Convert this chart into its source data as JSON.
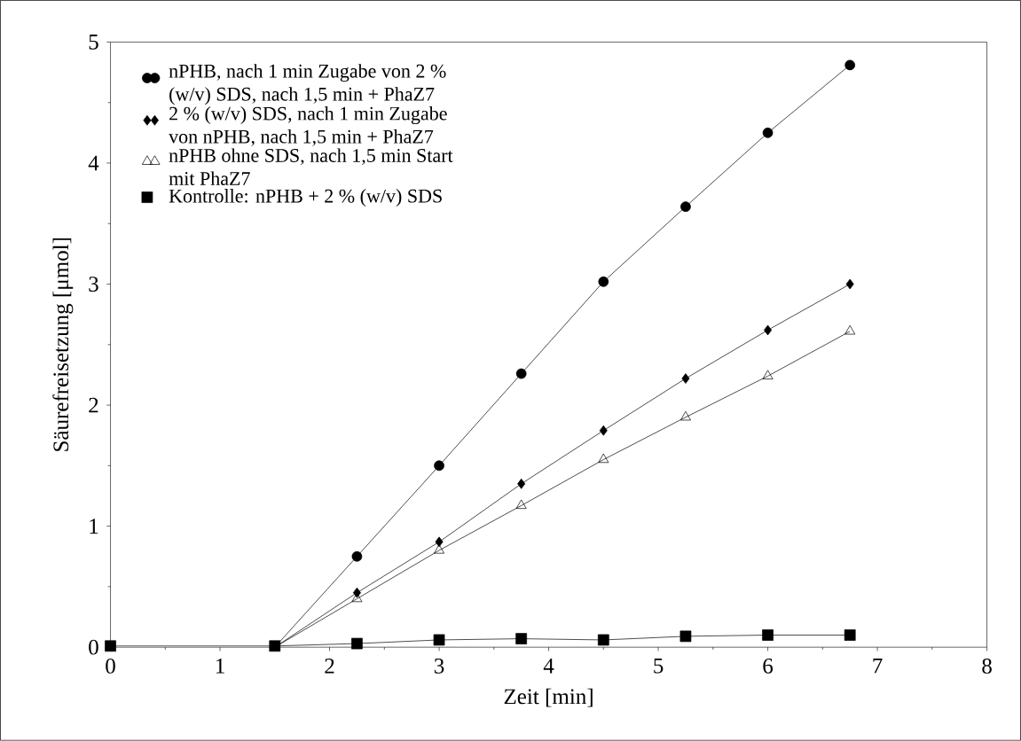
{
  "chart_data": {
    "type": "line",
    "xlabel": "Zeit [min]",
    "ylabel": "Säurefreisetzung [μmol]",
    "x": [
      0,
      1.5,
      2.25,
      3,
      3.75,
      4.5,
      5.25,
      6,
      6.75
    ],
    "xlim": [
      0,
      8
    ],
    "xticks": [
      0,
      1,
      2,
      3,
      4,
      5,
      6,
      7,
      8
    ],
    "ylim": [
      0,
      5
    ],
    "yticks": [
      0,
      1,
      2,
      3,
      4,
      5
    ],
    "grid": false,
    "legend": "top left",
    "line_style": "solid",
    "series": [
      {
        "name": "nPHB, nach 1 min  Zugabe von 2 % (w/v) SDS, nach 1,5 min + PhaZ7",
        "color": "#000000",
        "marker": "circle",
        "values": [
          null,
          0,
          0.75,
          1.5,
          2.26,
          3.02,
          3.64,
          4.25,
          4.81
        ]
      },
      {
        "name": "2 % (w/v) SDS, nach 1 min  Zugabe von nPHB, nach 1,5 min + PhaZ7",
        "color": "#000000",
        "marker": "diamond",
        "values": [
          null,
          0,
          0.45,
          0.87,
          1.35,
          1.79,
          2.22,
          2.62,
          3.0
        ]
      },
      {
        "name": "nPHB ohne SDS, nach 1,5 min  Start mit PhaZ7",
        "color": "#000000",
        "marker": "triangle",
        "values": [
          null,
          0,
          0.4,
          0.8,
          1.17,
          1.55,
          1.9,
          2.24,
          2.61
        ]
      },
      {
        "name": "Kontrolle: nPHB + 2 % (w/v) SDS",
        "color": "#000000",
        "marker": "square",
        "values": [
          0.01,
          0.01,
          0.03,
          0.06,
          0.07,
          0.06,
          0.09,
          0.1,
          0.1
        ]
      }
    ]
  }
}
